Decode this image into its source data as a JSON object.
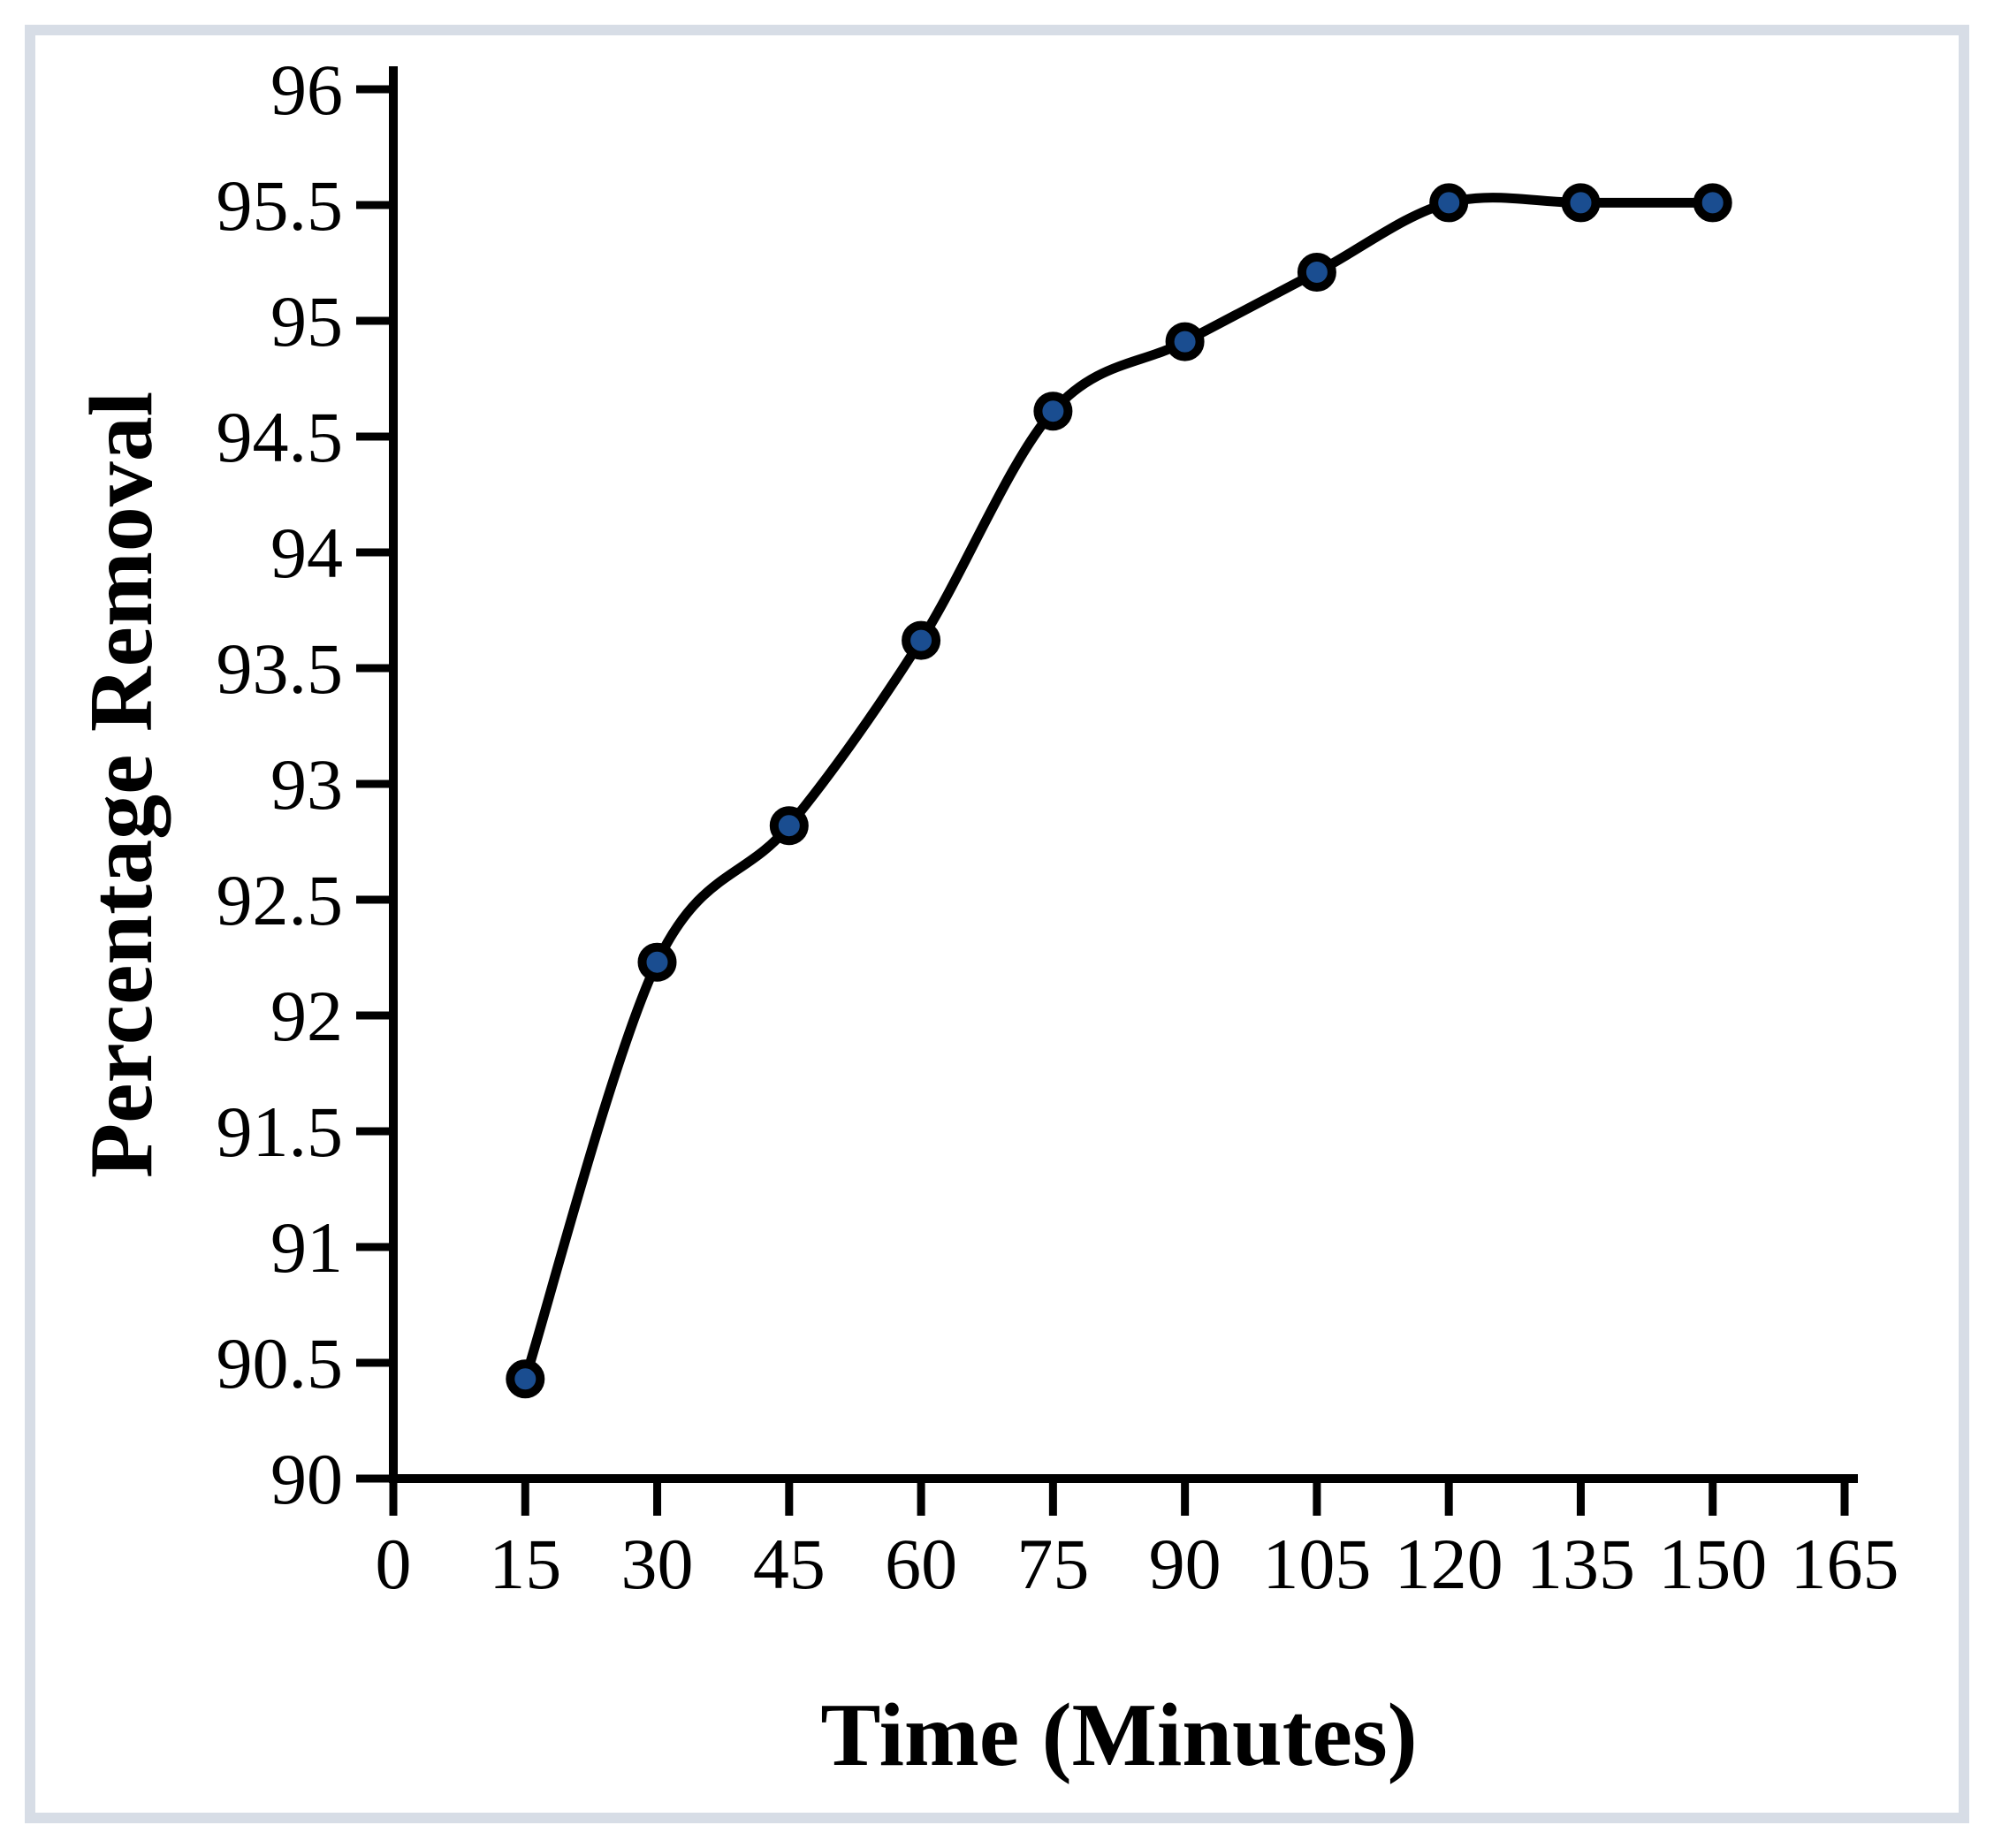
{
  "figure": {
    "background_color": "#FFFFFF",
    "border_color": "#D7DDE6"
  },
  "chart_data": {
    "type": "line",
    "title": "",
    "xlabel": "Time (Minutes)",
    "ylabel": "Percentage Removal",
    "x": [
      15,
      30,
      45,
      60,
      75,
      90,
      105,
      120,
      135,
      150
    ],
    "series": [
      {
        "name": "Percentage Removal",
        "values": [
          90.43,
          92.23,
          92.82,
          93.62,
          94.61,
          94.91,
          95.21,
          95.51,
          95.51,
          95.51
        ]
      }
    ],
    "xlim": [
      0,
      165
    ],
    "ylim": [
      90,
      96
    ],
    "xticks": [
      0,
      15,
      30,
      45,
      60,
      75,
      90,
      105,
      120,
      135,
      150,
      165
    ],
    "yticks": [
      90,
      90.5,
      91,
      91.5,
      92,
      92.5,
      93,
      93.5,
      94,
      94.5,
      95,
      95.5,
      96
    ],
    "grid": false,
    "legend_position": "none",
    "smooth": true,
    "line_color": "#000000",
    "axis_color": "#000000",
    "marker": {
      "shape": "circle",
      "fill": "#1A4D90",
      "stroke": "#000000"
    }
  }
}
